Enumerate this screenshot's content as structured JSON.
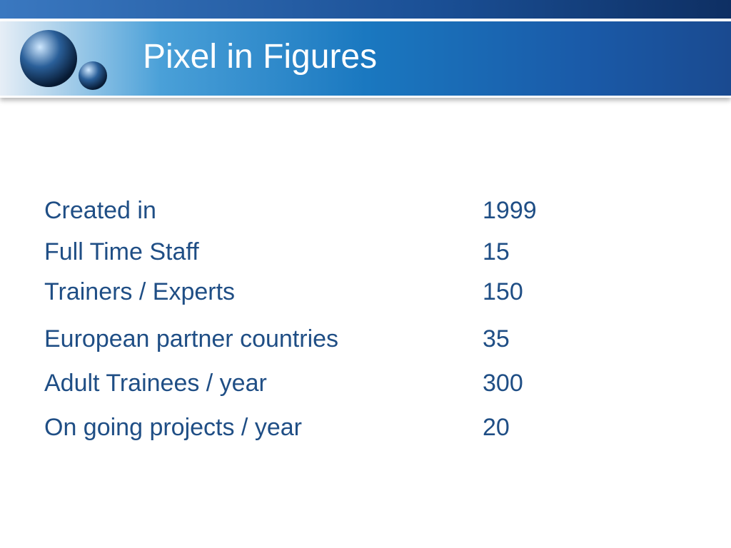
{
  "header": {
    "title": "Pixel in Figures"
  },
  "table": {
    "rows": [
      [
        "Created in",
        "1999"
      ],
      [
        "Full Time Staff",
        "15"
      ],
      [
        "Trainers / Experts",
        "150"
      ],
      [
        "European partner countries",
        "35"
      ],
      [
        "Adult Trainees / year",
        "300"
      ],
      [
        "On going projects / year",
        "20"
      ]
    ]
  }
}
